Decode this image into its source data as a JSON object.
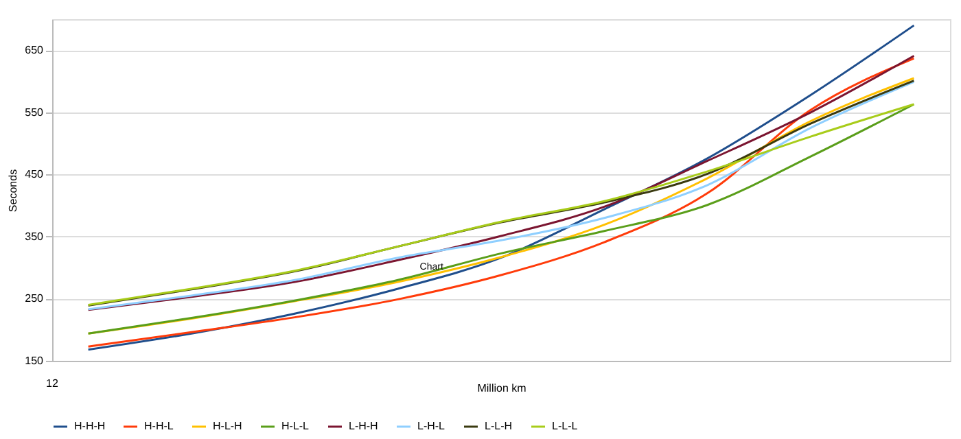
{
  "chart_data": {
    "type": "line",
    "xlabel": "Million km",
    "ylabel": "Seconds",
    "categories": [
      null,
      null,
      null,
      null,
      null,
      null,
      null,
      null,
      null
    ],
    "ylim": [
      150,
      700
    ],
    "yticks": [
      150,
      250,
      350,
      450,
      550,
      650
    ],
    "grid": "y",
    "legend": "bottom",
    "marker": "none",
    "line_style": "solid",
    "annotations": [
      "12",
      "Chart"
    ],
    "series": [
      {
        "name": "H-H-H",
        "color": "#1f4e8c",
        "values": [
          168,
          194,
          226,
          266,
          316,
          394,
          476,
          578,
          690
        ]
      },
      {
        "name": "H-H-L",
        "color": "#ff3b0a",
        "values": [
          173,
          196,
          220,
          249,
          288,
          341,
          420,
          554,
          637
        ]
      },
      {
        "name": "H-L-H",
        "color": "#ffc000",
        "values": [
          194,
          218,
          246,
          277,
          317,
          369,
          444,
          536,
          605
        ]
      },
      {
        "name": "H-L-L",
        "color": "#5a9e1a",
        "values": [
          194,
          219,
          247,
          280,
          323,
          359,
          401,
          479,
          563
        ]
      },
      {
        "name": "L-H-H",
        "color": "#7b1530",
        "values": [
          232,
          253,
          277,
          312,
          351,
          398,
          472,
          550,
          641
        ]
      },
      {
        "name": "L-H-L",
        "color": "#8fcfff",
        "values": [
          233,
          255,
          280,
          316,
          344,
          380,
          433,
          525,
          599
        ]
      },
      {
        "name": "L-L-H",
        "color": "#3a3a10",
        "values": [
          239,
          265,
          294,
          334,
          373,
          405,
          451,
          532,
          601
        ]
      },
      {
        "name": "L-L-L",
        "color": "#a8cc1a",
        "values": [
          240,
          266,
          295,
          334,
          374,
          407,
          455,
          511,
          563
        ]
      }
    ]
  }
}
